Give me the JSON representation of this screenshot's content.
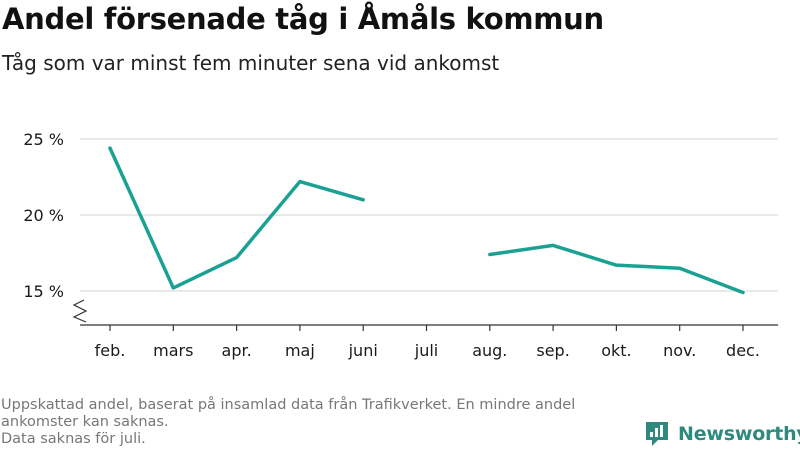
{
  "title": "Andel försenade tåg i Åmåls kommun",
  "subtitle": "Tåg som var minst fem minuter sena vid ankomst",
  "footnote_lines": [
    "Uppskattad andel, baserat på insamlad data från Trafikverket. En mindre andel",
    "ankomster kan saknas.",
    "Data saknas för juli."
  ],
  "brand": {
    "name": "Newsworthy",
    "icon": "newsworthy-logo-icon"
  },
  "colors": {
    "line": "#1aa193",
    "grid": "#dcdcdc",
    "axis": "#333333",
    "footnote": "#777777",
    "brand": "#2e8a7e"
  },
  "chart_data": {
    "type": "line",
    "title": "Andel försenade tåg i Åmåls kommun",
    "subtitle": "Tåg som var minst fem minuter sena vid ankomst",
    "categories": [
      "feb.",
      "mars",
      "apr.",
      "maj",
      "juni",
      "juli",
      "aug.",
      "sep.",
      "okt.",
      "nov.",
      "dec."
    ],
    "series": [
      {
        "values": [
          24.4,
          15.2,
          17.2,
          22.2,
          21.0,
          null,
          17.4,
          18.0,
          16.7,
          16.5,
          14.9
        ]
      }
    ],
    "ylim": [
      13,
      26
    ],
    "yticks": [
      15,
      20,
      25
    ],
    "ytick_labels": [
      "15 %",
      "20 %",
      "25 %"
    ],
    "y_axis_break": true,
    "grid": true,
    "legend": "none",
    "xlabel": "",
    "ylabel": ""
  }
}
